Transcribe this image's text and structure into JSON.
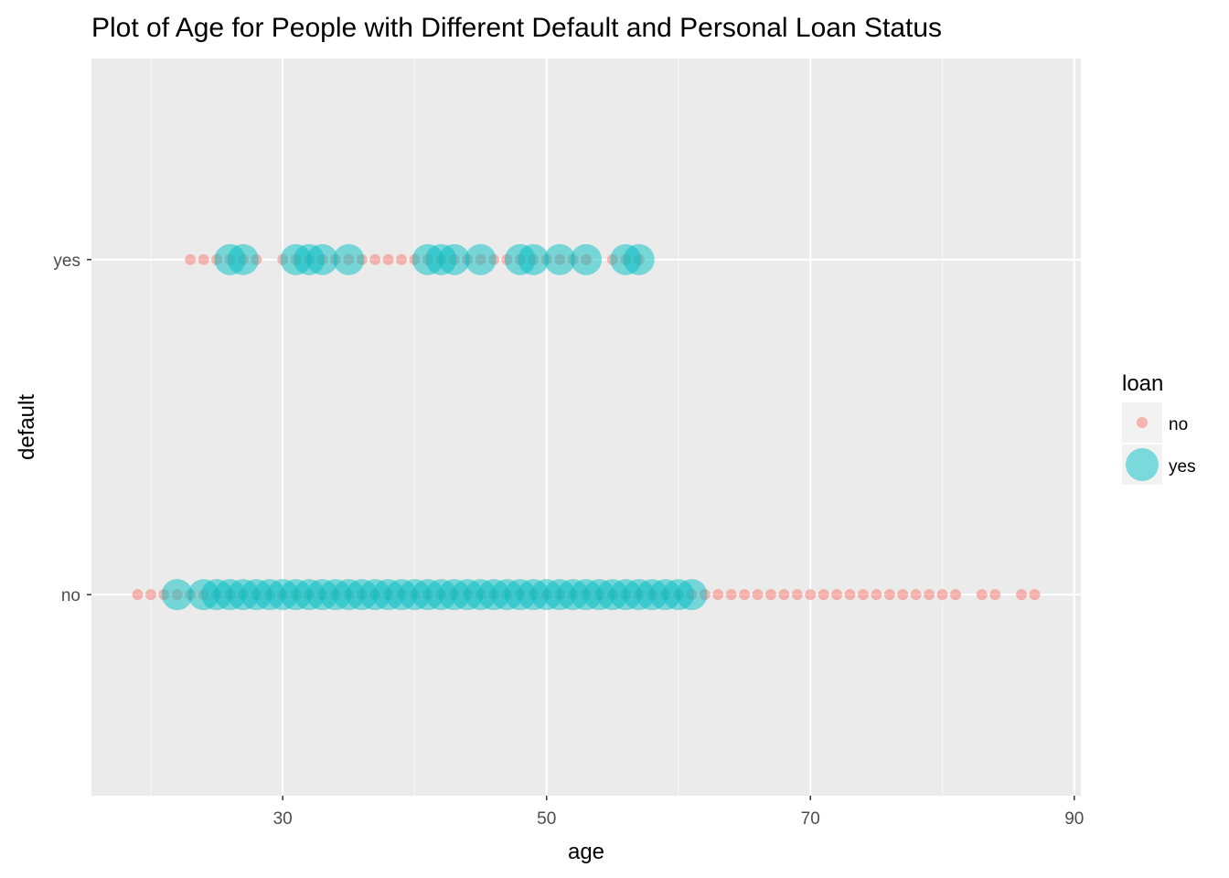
{
  "chart_data": {
    "type": "scatter",
    "title": "Plot of Age for People with Different Default and Personal Loan Status",
    "xlabel": "age",
    "ylabel": "default",
    "xlim": [
      15.5,
      90.5
    ],
    "x_ticks": [
      30,
      50,
      70,
      90
    ],
    "x_minor_ticks": [
      20,
      40,
      60,
      80
    ],
    "y_categories": [
      "no",
      "yes"
    ],
    "grid": true,
    "legend": {
      "title": "loan",
      "position": "right",
      "entries": [
        "no",
        "yes"
      ]
    },
    "colors": {
      "no": "#F8766D",
      "yes": "#00BFC4",
      "panel": "#EBEBEB",
      "grid": "#FFFFFF"
    },
    "series": [
      {
        "name": "no",
        "size": "small",
        "points": [
          {
            "default": "no",
            "ages": [
              19,
              20,
              21,
              22,
              23,
              24,
              25,
              26,
              27,
              28,
              29,
              30,
              31,
              32,
              33,
              34,
              35,
              36,
              37,
              38,
              39,
              40,
              41,
              42,
              43,
              44,
              45,
              46,
              47,
              48,
              49,
              50,
              51,
              52,
              53,
              54,
              55,
              56,
              57,
              58,
              59,
              60,
              61,
              62,
              63,
              64,
              65,
              66,
              67,
              68,
              69,
              70,
              71,
              72,
              73,
              74,
              75,
              76,
              77,
              78,
              79,
              80,
              81,
              83,
              84,
              86,
              87
            ]
          },
          {
            "default": "yes",
            "ages": [
              23,
              24,
              25,
              26,
              27,
              28,
              30,
              31,
              32,
              33,
              34,
              35,
              36,
              37,
              38,
              39,
              40,
              41,
              42,
              43,
              44,
              45,
              46,
              47,
              48,
              49,
              50,
              51,
              52,
              53,
              55,
              56,
              57
            ]
          }
        ]
      },
      {
        "name": "yes",
        "size": "large",
        "points": [
          {
            "default": "no",
            "ages": [
              22,
              24,
              25,
              26,
              27,
              28,
              29,
              30,
              31,
              32,
              33,
              34,
              35,
              36,
              37,
              38,
              39,
              40,
              41,
              42,
              43,
              44,
              45,
              46,
              47,
              48,
              49,
              50,
              51,
              52,
              53,
              54,
              55,
              56,
              57,
              58,
              59,
              60,
              61
            ]
          },
          {
            "default": "yes",
            "ages": [
              26,
              27,
              31,
              32,
              33,
              35,
              41,
              42,
              43,
              45,
              48,
              49,
              51,
              53,
              56,
              57
            ]
          }
        ]
      }
    ]
  }
}
